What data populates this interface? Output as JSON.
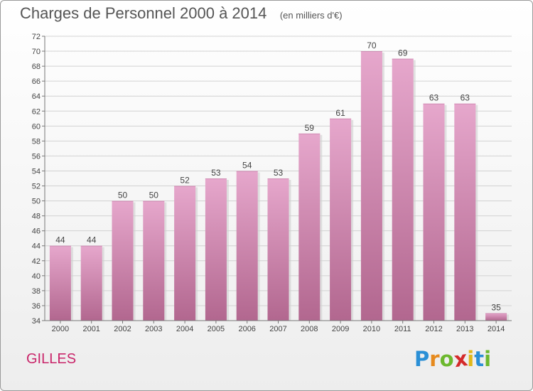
{
  "title": "Charges de Personnel 2000 à 2014",
  "subtitle": "(en milliers d'€)",
  "place_name": "GILLES",
  "logo": {
    "letters": [
      "P",
      "r",
      "o",
      "x",
      "i",
      "t",
      "i"
    ],
    "colors": [
      "#2a8fd6",
      "#e68a1e",
      "#6cb82e",
      "#d42a2a",
      "#e0b81a",
      "#2a8fd6",
      "#6cb82e"
    ]
  },
  "colors": {
    "bar_top": "#e6a7cc",
    "bar_bottom": "#b2678f",
    "accent": "#c9256a"
  },
  "chart_data": {
    "type": "bar",
    "title": "Charges de Personnel 2000 à 2014",
    "subtitle": "(en milliers d'€)",
    "categories": [
      "2000",
      "2001",
      "2002",
      "2003",
      "2004",
      "2005",
      "2006",
      "2007",
      "2008",
      "2009",
      "2010",
      "2011",
      "2012",
      "2013",
      "2014"
    ],
    "values": [
      44,
      44,
      50,
      50,
      52,
      53,
      54,
      53,
      59,
      61,
      70,
      69,
      63,
      63,
      35
    ],
    "ylim": [
      34,
      72
    ],
    "yticks": [
      34,
      36,
      38,
      40,
      42,
      44,
      46,
      48,
      50,
      52,
      54,
      56,
      58,
      60,
      62,
      64,
      66,
      68,
      70,
      72
    ],
    "grid": true,
    "legend": "none",
    "xlabel": "",
    "ylabel": ""
  }
}
